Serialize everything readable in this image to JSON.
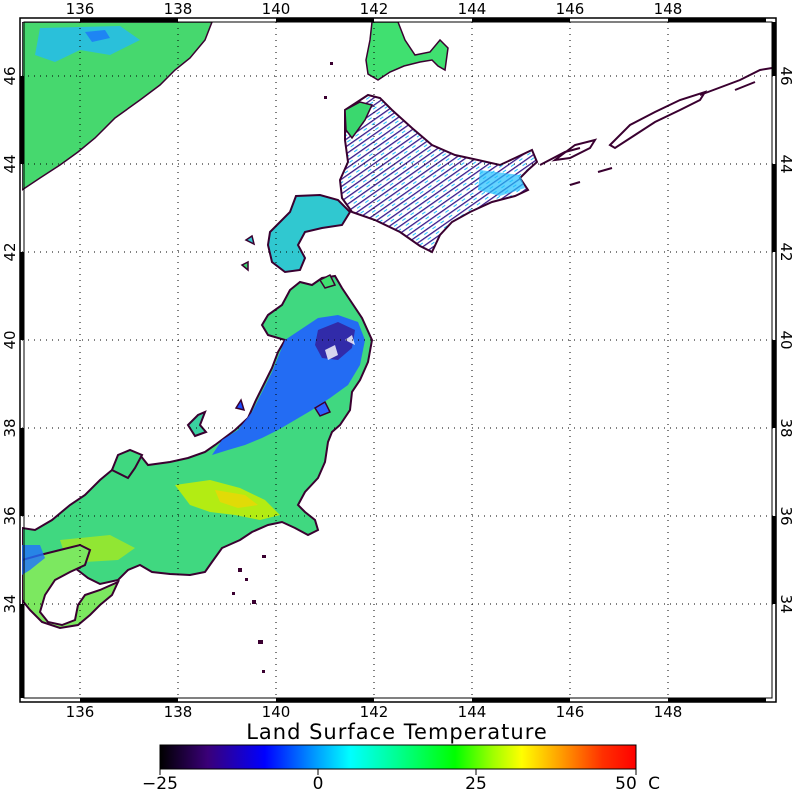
{
  "map": {
    "title": "Land Surface Temperature",
    "lon_ticks": [
      "136",
      "138",
      "140",
      "142",
      "144",
      "146",
      "148"
    ],
    "lat_ticks": [
      "34",
      "36",
      "38",
      "40",
      "42",
      "44",
      "46"
    ]
  },
  "colorbar": {
    "labels": [
      "−25",
      "0",
      "25",
      "50"
    ],
    "unit": "C",
    "stops": [
      "#000000",
      "#3a0078",
      "#0000ff",
      "#00a0ff",
      "#00ffff",
      "#00ff80",
      "#00ff00",
      "#a0ff00",
      "#ffff00",
      "#ffa000",
      "#ff3000",
      "#ff0000"
    ]
  },
  "colors": {
    "ocean": "#ffffff",
    "coast": "#3a0030",
    "warm_green": "#44e070",
    "cold_blue": "#1a4cff",
    "snow": "#ffffff"
  }
}
